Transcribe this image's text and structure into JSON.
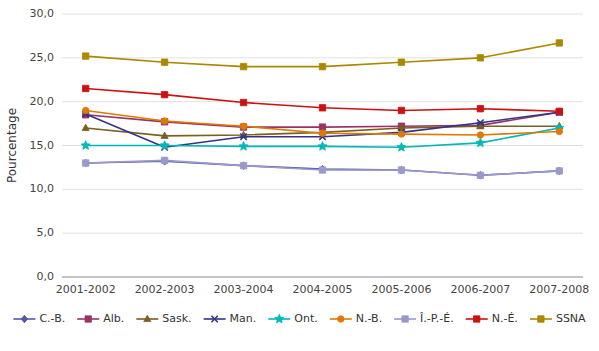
{
  "chart_data": {
    "type": "line",
    "y_label": "Pourcentage",
    "categories": [
      "2001-2002",
      "2002-2003",
      "2003-2004",
      "2004-2005",
      "2005-2006",
      "2006-2007",
      "2007-2008"
    ],
    "series": [
      {
        "name": "C.-B.",
        "color": "#5555aa",
        "marker": "diamond",
        "values": [
          13.0,
          13.2,
          12.7,
          12.3,
          12.2,
          11.6,
          12.1
        ]
      },
      {
        "name": "Alb.",
        "color": "#993366",
        "marker": "square",
        "values": [
          18.5,
          17.7,
          17.1,
          17.1,
          17.2,
          17.3,
          18.8
        ]
      },
      {
        "name": "Sask.",
        "color": "#7a6020",
        "marker": "triangle",
        "values": [
          17.0,
          16.1,
          16.2,
          16.5,
          17.0,
          17.2,
          17.2
        ]
      },
      {
        "name": "Man.",
        "color": "#333388",
        "marker": "x",
        "values": [
          18.6,
          14.8,
          16.0,
          16.0,
          16.5,
          17.6,
          18.8
        ]
      },
      {
        "name": "Ont.",
        "color": "#00b8b8",
        "marker": "star",
        "values": [
          15.0,
          15.0,
          14.9,
          14.9,
          14.8,
          15.3,
          17.0
        ]
      },
      {
        "name": "N.-B.",
        "color": "#e07800",
        "marker": "circle",
        "values": [
          19.0,
          17.8,
          17.2,
          16.4,
          16.3,
          16.2,
          16.6
        ]
      },
      {
        "name": "Î.-P.-É.",
        "color": "#9999cc",
        "marker": "square",
        "values": [
          13.0,
          13.3,
          12.7,
          12.2,
          12.2,
          11.6,
          12.1
        ]
      },
      {
        "name": "N.-É.",
        "color": "#cc1111",
        "marker": "square",
        "values": [
          21.5,
          20.8,
          19.9,
          19.3,
          19.0,
          19.2,
          18.9
        ]
      },
      {
        "name": "SSNA",
        "color": "#aa8800",
        "marker": "square",
        "values": [
          25.2,
          24.5,
          24.0,
          24.0,
          24.5,
          25.0,
          26.7
        ]
      }
    ],
    "ylim": [
      0,
      30
    ],
    "yticks": [
      {
        "value": 0,
        "label": "0,0"
      },
      {
        "value": 5,
        "label": "5,0"
      },
      {
        "value": 10,
        "label": "10,0"
      },
      {
        "value": 15,
        "label": "15,0"
      },
      {
        "value": 20,
        "label": "20,0"
      },
      {
        "value": 25,
        "label": "25,0"
      },
      {
        "value": 30,
        "label": "30,0"
      }
    ],
    "grid": true,
    "legend": "bottom"
  }
}
